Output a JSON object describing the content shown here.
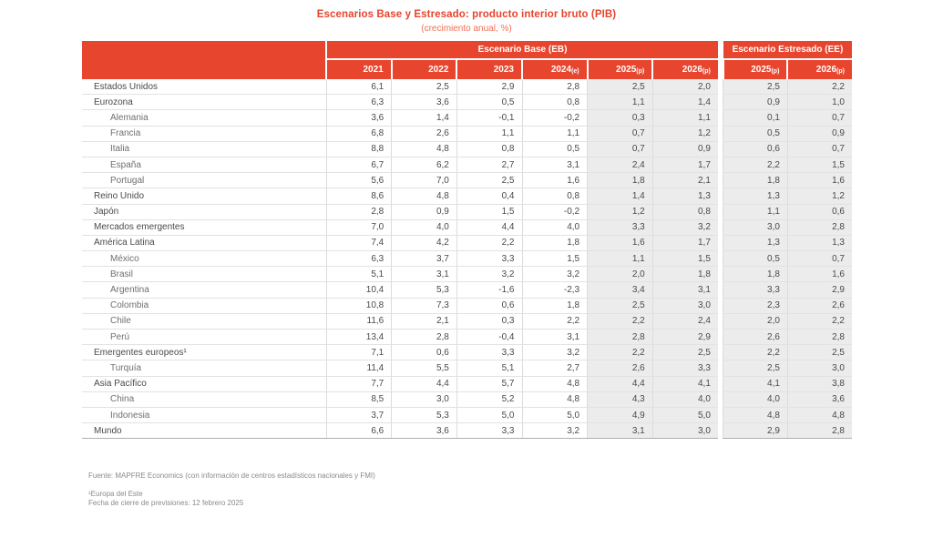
{
  "title": "Escenarios Base y Estresado: producto interior bruto (PIB)",
  "subtitle": "(crecimiento anual, %)",
  "colors": {
    "accent_red": "#e8452e",
    "shaded_column_bg": "#ececec",
    "title_red": "#e8432c"
  },
  "chart_data": {
    "type": "table",
    "col_groups": [
      {
        "label": "Escenario Base (EB)",
        "span": 6
      },
      {
        "label": "Escenario Estresado (EE)",
        "span": 2
      }
    ],
    "columns": [
      {
        "year": "2021",
        "suffix": ""
      },
      {
        "year": "2022",
        "suffix": ""
      },
      {
        "year": "2023",
        "suffix": ""
      },
      {
        "year": "2024",
        "suffix": "(e)"
      },
      {
        "year": "2025",
        "suffix": "(p)"
      },
      {
        "year": "2026",
        "suffix": "(p)"
      },
      {
        "year": "2025",
        "suffix": "(p)"
      },
      {
        "year": "2026",
        "suffix": "(p)"
      }
    ],
    "shaded_column_indexes": [
      4,
      5,
      6,
      7
    ],
    "rows": [
      {
        "label": "Estados Unidos",
        "indent": false,
        "values": [
          "6,1",
          "2,5",
          "2,9",
          "2,8",
          "2,5",
          "2,0",
          "2,5",
          "2,2"
        ]
      },
      {
        "label": "Eurozona",
        "indent": false,
        "values": [
          "6,3",
          "3,6",
          "0,5",
          "0,8",
          "1,1",
          "1,4",
          "0,9",
          "1,0"
        ]
      },
      {
        "label": "Alemania",
        "indent": true,
        "values": [
          "3,6",
          "1,4",
          "-0,1",
          "-0,2",
          "0,3",
          "1,1",
          "0,1",
          "0,7"
        ]
      },
      {
        "label": "Francia",
        "indent": true,
        "values": [
          "6,8",
          "2,6",
          "1,1",
          "1,1",
          "0,7",
          "1,2",
          "0,5",
          "0,9"
        ]
      },
      {
        "label": "Italia",
        "indent": true,
        "values": [
          "8,8",
          "4,8",
          "0,8",
          "0,5",
          "0,7",
          "0,9",
          "0,6",
          "0,7"
        ]
      },
      {
        "label": "España",
        "indent": true,
        "values": [
          "6,7",
          "6,2",
          "2,7",
          "3,1",
          "2,4",
          "1,7",
          "2,2",
          "1,5"
        ]
      },
      {
        "label": "Portugal",
        "indent": true,
        "values": [
          "5,6",
          "7,0",
          "2,5",
          "1,6",
          "1,8",
          "2,1",
          "1,8",
          "1,6"
        ]
      },
      {
        "label": "Reino Unido",
        "indent": false,
        "values": [
          "8,6",
          "4,8",
          "0,4",
          "0,8",
          "1,4",
          "1,3",
          "1,3",
          "1,2"
        ]
      },
      {
        "label": "Japón",
        "indent": false,
        "values": [
          "2,8",
          "0,9",
          "1,5",
          "-0,2",
          "1,2",
          "0,8",
          "1,1",
          "0,6"
        ]
      },
      {
        "label": "Mercados emergentes",
        "indent": false,
        "values": [
          "7,0",
          "4,0",
          "4,4",
          "4,0",
          "3,3",
          "3,2",
          "3,0",
          "2,8"
        ]
      },
      {
        "label": "América Latina",
        "indent": false,
        "values": [
          "7,4",
          "4,2",
          "2,2",
          "1,8",
          "1,6",
          "1,7",
          "1,3",
          "1,3"
        ]
      },
      {
        "label": "México",
        "indent": true,
        "values": [
          "6,3",
          "3,7",
          "3,3",
          "1,5",
          "1,1",
          "1,5",
          "0,5",
          "0,7"
        ]
      },
      {
        "label": "Brasil",
        "indent": true,
        "values": [
          "5,1",
          "3,1",
          "3,2",
          "3,2",
          "2,0",
          "1,8",
          "1,8",
          "1,6"
        ]
      },
      {
        "label": "Argentina",
        "indent": true,
        "values": [
          "10,4",
          "5,3",
          "-1,6",
          "-2,3",
          "3,4",
          "3,1",
          "3,3",
          "2,9"
        ]
      },
      {
        "label": "Colombia",
        "indent": true,
        "values": [
          "10,8",
          "7,3",
          "0,6",
          "1,8",
          "2,5",
          "3,0",
          "2,3",
          "2,6"
        ]
      },
      {
        "label": "Chile",
        "indent": true,
        "values": [
          "11,6",
          "2,1",
          "0,3",
          "2,2",
          "2,2",
          "2,4",
          "2,0",
          "2,2"
        ]
      },
      {
        "label": "Perú",
        "indent": true,
        "values": [
          "13,4",
          "2,8",
          "-0,4",
          "3,1",
          "2,8",
          "2,9",
          "2,6",
          "2,8"
        ]
      },
      {
        "label": "Emergentes europeos¹",
        "indent": false,
        "values": [
          "7,1",
          "0,6",
          "3,3",
          "3,2",
          "2,2",
          "2,5",
          "2,2",
          "2,5"
        ]
      },
      {
        "label": "Turquía",
        "indent": true,
        "values": [
          "11,4",
          "5,5",
          "5,1",
          "2,7",
          "2,6",
          "3,3",
          "2,5",
          "3,0"
        ]
      },
      {
        "label": "Asia Pacífico",
        "indent": false,
        "values": [
          "7,7",
          "4,4",
          "5,7",
          "4,8",
          "4,4",
          "4,1",
          "4,1",
          "3,8"
        ]
      },
      {
        "label": "China",
        "indent": true,
        "values": [
          "8,5",
          "3,0",
          "5,2",
          "4,8",
          "4,3",
          "4,0",
          "4,0",
          "3,6"
        ]
      },
      {
        "label": "Indonesia",
        "indent": true,
        "values": [
          "3,7",
          "5,3",
          "5,0",
          "5,0",
          "4,9",
          "5,0",
          "4,8",
          "4,8"
        ]
      },
      {
        "label": "Mundo",
        "indent": false,
        "values": [
          "6,6",
          "3,6",
          "3,3",
          "3,2",
          "3,1",
          "3,0",
          "2,9",
          "2,8"
        ]
      }
    ]
  },
  "footer": {
    "source": "Fuente: MAPFRE Economics (con información de centros estadísticos nacionales y FMI)",
    "footnote": "¹Europa del Este",
    "closing": "Fecha de cierre de previsiones: 12 febrero 2025"
  }
}
